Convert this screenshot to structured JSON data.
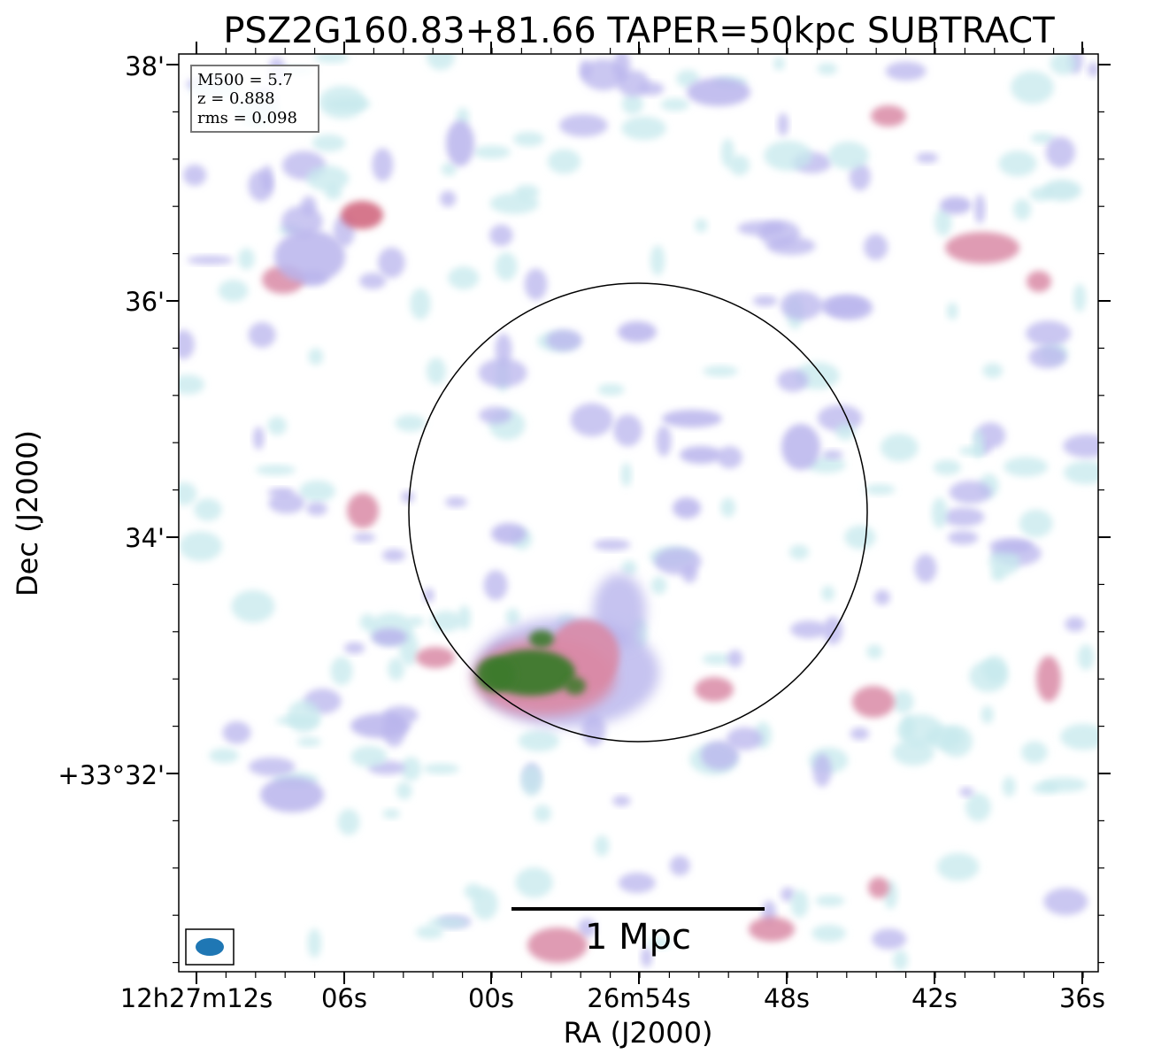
{
  "title": "PSZ2G160.83+81.66 TAPER=50kpc SUBTRACT",
  "info_box": {
    "mass": "M500 = 5.7",
    "redshift": "z = 0.888",
    "rms": "rms = 0.098"
  },
  "x_axis": {
    "label": "RA (J2000)",
    "ticks": [
      "12h27m12s",
      "06s",
      "00s",
      "26m54s",
      "48s",
      "42s",
      "36s"
    ]
  },
  "y_axis": {
    "label": "Dec (J2000)",
    "ticks": [
      "38'",
      "36'",
      "34'",
      "+33°32'"
    ]
  },
  "scale_bar": {
    "label": "1 Mpc"
  },
  "colors": {
    "faint": "#c6e8ec",
    "mid": "#b8b4ec",
    "strong": "#d98aa6",
    "core": "#cf5f78",
    "peak": "#3c7a2c",
    "beam": "#1f77b4"
  }
}
